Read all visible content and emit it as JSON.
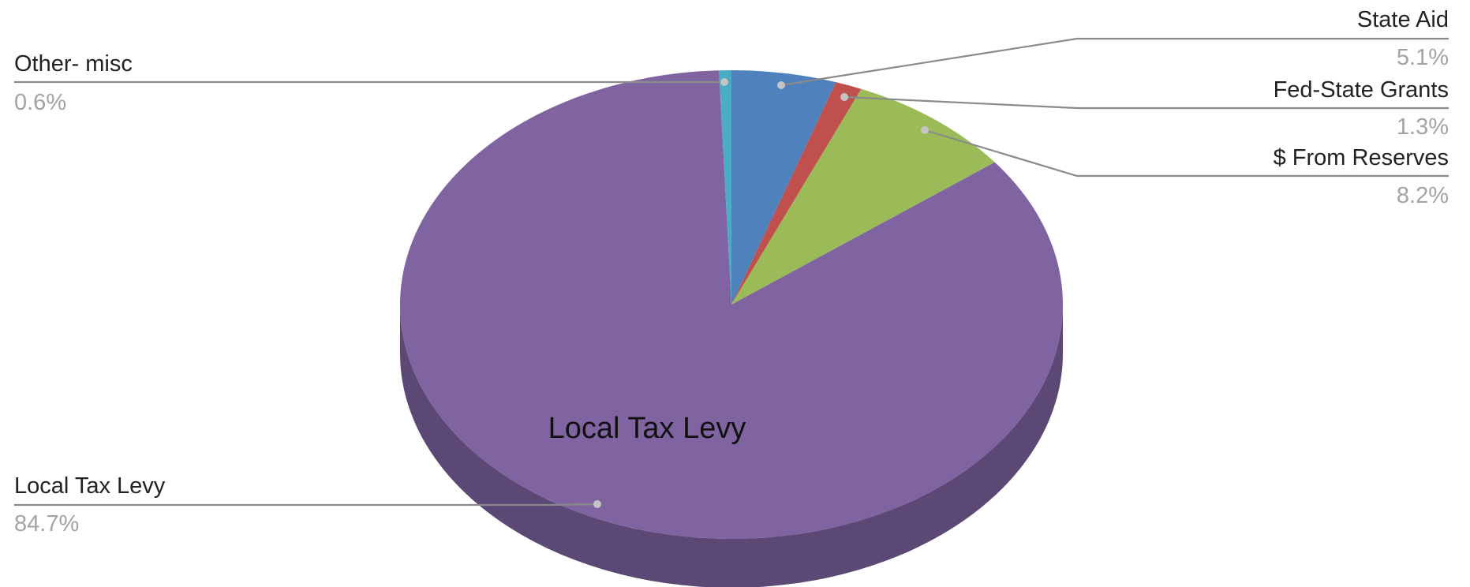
{
  "chart_data": {
    "type": "pie",
    "title": "",
    "slices": [
      {
        "label": "State Aid",
        "value": 5.1,
        "display": "5.1%",
        "color": "#4f81bd"
      },
      {
        "label": "Fed-State Grants",
        "value": 1.3,
        "display": "1.3%",
        "color": "#c0504d"
      },
      {
        "label": "$ From Reserves",
        "value": 8.2,
        "display": "8.2%",
        "color": "#9bbb59"
      },
      {
        "label": "Local Tax Levy",
        "value": 84.7,
        "display": "84.7%",
        "color": "#8064a2"
      },
      {
        "label": "Other- misc",
        "value": 0.6,
        "display": "0.6%",
        "color": "#4bacc6"
      }
    ],
    "inner_label": "Local Tax Levy",
    "style": "3d-tilted",
    "legend": "none",
    "label_mode": "callouts"
  }
}
